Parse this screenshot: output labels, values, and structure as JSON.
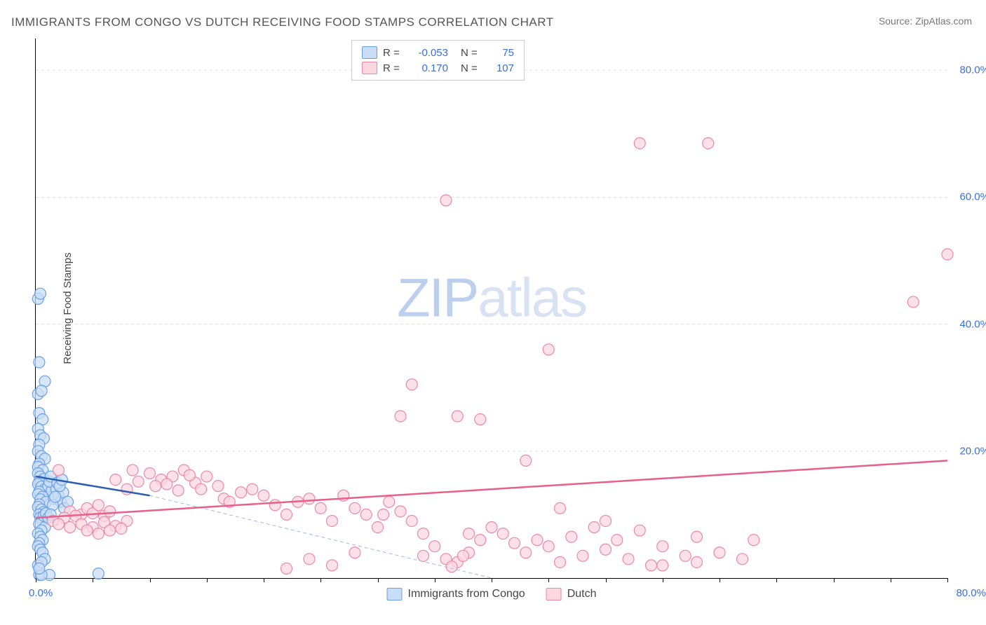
{
  "title": "IMMIGRANTS FROM CONGO VS DUTCH RECEIVING FOOD STAMPS CORRELATION CHART",
  "source": "Source: ZipAtlas.com",
  "y_axis_title": "Receiving Food Stamps",
  "watermark_bold": "ZIP",
  "watermark_light": "atlas",
  "chart": {
    "type": "scatter",
    "xlim": [
      0,
      80
    ],
    "ylim": [
      0,
      85
    ],
    "y_ticks": [
      20,
      40,
      60,
      80
    ],
    "y_tick_labels": [
      "20.0%",
      "40.0%",
      "60.0%",
      "80.0%"
    ],
    "x_origin_label": "0.0%",
    "x_end_label": "80.0%",
    "x_tick_step": 5,
    "grid_color": "#dddddd",
    "background": "#ffffff",
    "series": [
      {
        "name": "Immigrants from Congo",
        "fill": "#c9ddf6",
        "stroke": "#6a9fe3",
        "r_label": "R =",
        "r_value": "-0.053",
        "n_label": "N =",
        "n_value": "75",
        "trend": {
          "x1": 0,
          "y1": 16,
          "x2": 10,
          "y2": 13,
          "color": "#2a5db0",
          "width": 2.5,
          "dash": ""
        },
        "trend_ext": {
          "x1": 10,
          "y1": 13,
          "x2": 40,
          "y2": 0,
          "color": "#9bb9e4",
          "width": 1,
          "dash": "5,4"
        },
        "points": [
          [
            0.2,
            44
          ],
          [
            0.4,
            44.8
          ],
          [
            0.3,
            34
          ],
          [
            0.8,
            31
          ],
          [
            0.2,
            29
          ],
          [
            0.5,
            29.5
          ],
          [
            0.3,
            26
          ],
          [
            0.6,
            25
          ],
          [
            0.2,
            23.5
          ],
          [
            0.4,
            22.5
          ],
          [
            0.7,
            22
          ],
          [
            0.3,
            21
          ],
          [
            0.2,
            20
          ],
          [
            0.5,
            19.2
          ],
          [
            0.8,
            18.8
          ],
          [
            0.3,
            18
          ],
          [
            0.2,
            17.5
          ],
          [
            0.6,
            17
          ],
          [
            0.2,
            16.5
          ],
          [
            0.4,
            16
          ],
          [
            0.7,
            15.6
          ],
          [
            0.3,
            15.2
          ],
          [
            0.2,
            14.8
          ],
          [
            0.5,
            14.4
          ],
          [
            0.8,
            14
          ],
          [
            0.3,
            13.6
          ],
          [
            0.2,
            13.2
          ],
          [
            0.6,
            12.8
          ],
          [
            0.4,
            12.4
          ],
          [
            0.9,
            12
          ],
          [
            0.3,
            11.6
          ],
          [
            0.2,
            11.2
          ],
          [
            0.5,
            10.8
          ],
          [
            0.7,
            10.4
          ],
          [
            0.3,
            10
          ],
          [
            1.1,
            14.5
          ],
          [
            1.4,
            13.8
          ],
          [
            1.2,
            15.2
          ],
          [
            1.6,
            12.5
          ],
          [
            1.8,
            14
          ],
          [
            1.3,
            16
          ],
          [
            2,
            13
          ],
          [
            2.2,
            12
          ],
          [
            1.5,
            11.5
          ],
          [
            1.9,
            15
          ],
          [
            2.4,
            13.5
          ],
          [
            2.1,
            14.5
          ],
          [
            1.7,
            12.8
          ],
          [
            2.5,
            11
          ],
          [
            2.3,
            15.5
          ],
          [
            0.4,
            9.5
          ],
          [
            0.6,
            9
          ],
          [
            0.3,
            8.5
          ],
          [
            0.8,
            8
          ],
          [
            0.5,
            7.5
          ],
          [
            0.2,
            7
          ],
          [
            0.4,
            6.5
          ],
          [
            0.6,
            6
          ],
          [
            0.3,
            5.5
          ],
          [
            0.7,
            9.8
          ],
          [
            0.9,
            10.2
          ],
          [
            1.1,
            9.5
          ],
          [
            1.3,
            10
          ],
          [
            0.2,
            5
          ],
          [
            0.4,
            4.5
          ],
          [
            0.6,
            4
          ],
          [
            0.3,
            0.5
          ],
          [
            1.2,
            0.5
          ],
          [
            0.5,
            0.5
          ],
          [
            5.5,
            0.7
          ],
          [
            0.8,
            3
          ],
          [
            0.2,
            2
          ],
          [
            0.5,
            2.5
          ],
          [
            0.3,
            1.5
          ],
          [
            2.8,
            12
          ]
        ]
      },
      {
        "name": "Dutch",
        "fill": "#fcd7e0",
        "stroke": "#e989a8",
        "r_label": "R =",
        "r_value": "0.170",
        "n_label": "N =",
        "n_value": "107",
        "trend": {
          "x1": 0,
          "y1": 9.5,
          "x2": 80,
          "y2": 18.5,
          "color": "#e85f8a",
          "width": 2.5,
          "dash": ""
        },
        "points": [
          [
            53,
            68.5
          ],
          [
            59,
            68.5
          ],
          [
            36,
            59.5
          ],
          [
            80,
            51
          ],
          [
            77,
            43.5
          ],
          [
            45,
            36
          ],
          [
            33,
            30.5
          ],
          [
            37,
            25.5
          ],
          [
            32,
            25.5
          ],
          [
            39,
            25
          ],
          [
            43,
            18.5
          ],
          [
            2,
            17
          ],
          [
            8.5,
            17
          ],
          [
            10,
            16.5
          ],
          [
            12,
            16
          ],
          [
            11,
            15.5
          ],
          [
            13,
            17
          ],
          [
            14,
            15
          ],
          [
            15,
            16
          ],
          [
            16,
            14.5
          ],
          [
            9,
            15.2
          ],
          [
            11.5,
            14.8
          ],
          [
            13.5,
            16.2
          ],
          [
            7,
            15.5
          ],
          [
            8,
            14
          ],
          [
            10.5,
            14.5
          ],
          [
            12.5,
            13.8
          ],
          [
            14.5,
            14
          ],
          [
            16.5,
            12.5
          ],
          [
            17,
            12
          ],
          [
            19,
            14
          ],
          [
            20,
            13
          ],
          [
            21,
            11.5
          ],
          [
            23,
            12
          ],
          [
            18,
            13.5
          ],
          [
            22,
            10
          ],
          [
            24,
            12.5
          ],
          [
            25,
            11
          ],
          [
            27,
            13
          ],
          [
            26,
            9
          ],
          [
            28,
            11
          ],
          [
            29,
            10
          ],
          [
            30,
            8
          ],
          [
            31,
            12
          ],
          [
            32,
            10.5
          ],
          [
            33,
            9
          ],
          [
            34,
            7
          ],
          [
            30.5,
            10
          ],
          [
            3,
            10.5
          ],
          [
            4,
            10
          ],
          [
            4.5,
            11
          ],
          [
            5,
            10.2
          ],
          [
            5.5,
            11.5
          ],
          [
            6,
            9.8
          ],
          [
            6.5,
            10.5
          ],
          [
            1.5,
            9
          ],
          [
            2.5,
            9.5
          ],
          [
            3.5,
            9.8
          ],
          [
            2,
            8.5
          ],
          [
            3,
            8
          ],
          [
            4,
            8.5
          ],
          [
            5,
            8
          ],
          [
            6,
            8.8
          ],
          [
            7,
            8.2
          ],
          [
            8,
            9
          ],
          [
            4.5,
            7.5
          ],
          [
            5.5,
            7
          ],
          [
            6.5,
            7.5
          ],
          [
            7.5,
            7.8
          ],
          [
            38,
            7
          ],
          [
            39,
            6
          ],
          [
            40,
            8
          ],
          [
            42,
            5.5
          ],
          [
            41,
            7
          ],
          [
            43,
            4
          ],
          [
            44,
            6
          ],
          [
            45,
            5
          ],
          [
            46,
            2.5
          ],
          [
            47,
            6.5
          ],
          [
            48,
            3.5
          ],
          [
            49,
            8
          ],
          [
            50,
            4.5
          ],
          [
            51,
            6
          ],
          [
            52,
            3
          ],
          [
            53,
            7.5
          ],
          [
            54,
            2
          ],
          [
            55,
            5
          ],
          [
            57,
            3.5
          ],
          [
            58,
            6.5
          ],
          [
            60,
            4
          ],
          [
            62,
            3
          ],
          [
            63,
            6
          ],
          [
            36,
            3
          ],
          [
            37,
            2.5
          ],
          [
            38,
            4
          ],
          [
            35,
            5
          ],
          [
            34,
            3.5
          ],
          [
            36.5,
            1.8
          ],
          [
            37.5,
            3.5
          ],
          [
            24,
            3
          ],
          [
            26,
            2
          ],
          [
            28,
            4
          ],
          [
            22,
            1.5
          ],
          [
            46,
            11
          ],
          [
            50,
            9
          ],
          [
            55,
            2
          ],
          [
            58,
            2.5
          ]
        ]
      }
    ]
  },
  "legend_bottom": [
    {
      "label": "Immigrants from Congo",
      "fill": "#c9ddf6",
      "stroke": "#6a9fe3"
    },
    {
      "label": "Dutch",
      "fill": "#fcd7e0",
      "stroke": "#e989a8"
    }
  ]
}
